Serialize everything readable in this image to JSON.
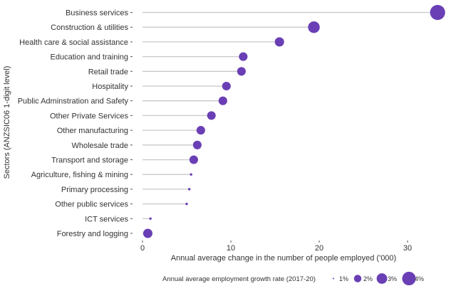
{
  "chart_data": {
    "type": "scatter",
    "subtype": "lollipop",
    "title": "",
    "xlabel": "Annual average change in the number of people employed ('000)",
    "ylabel": "Sectors (ANZSIC06 1-digit level)",
    "xlim": [
      -0.5,
      34
    ],
    "xticks": [
      0,
      10,
      20,
      30
    ],
    "grid": false,
    "point_color": "#6a3fb5",
    "stem_color": "#c8c8c8",
    "categories": [
      "Business services",
      "Construction & utilities",
      "Health care & social assistance",
      "Education and training",
      "Retail trade",
      "Hospitality",
      "Public Adminstration and Safety",
      "Other Private Services",
      "Other manufacturing",
      "Wholesale trade",
      "Transport and storage",
      "Agriculture, fishing & mining",
      "Primary processing",
      "Other public services",
      "ICT services",
      "Forestry and logging"
    ],
    "values": [
      33.4,
      19.4,
      15.5,
      11.4,
      11.2,
      9.5,
      9.1,
      7.8,
      6.6,
      6.2,
      5.8,
      5.5,
      5.3,
      5.0,
      0.9,
      0.6
    ],
    "growth_rate_pct": [
      4.0,
      3.0,
      2.3,
      2.1,
      2.1,
      2.1,
      2.1,
      2.1,
      2.1,
      2.1,
      2.1,
      0.3,
      0.3,
      0.3,
      0.3,
      2.3
    ],
    "legend": {
      "title": "Annual average employment growth rate (2017-20)",
      "placement": "bottom",
      "entries": [
        {
          "label": "1%",
          "value": 1
        },
        {
          "label": "2%",
          "value": 2
        },
        {
          "label": "3%",
          "value": 3
        },
        {
          "label": "4%",
          "value": 4
        }
      ]
    }
  }
}
